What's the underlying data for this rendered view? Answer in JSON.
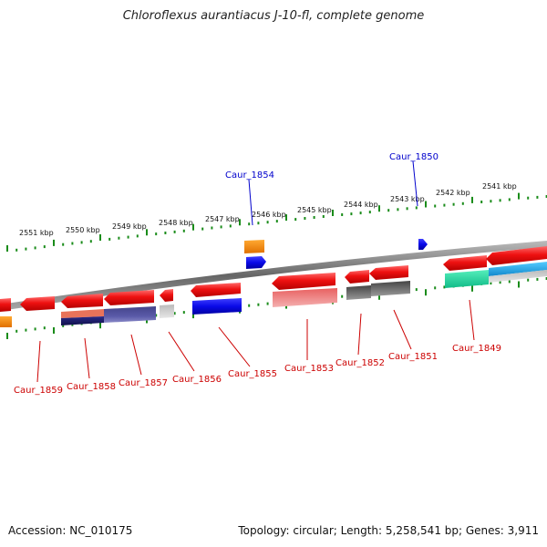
{
  "title": "Chloroflexus aurantiacus J-10-fl, complete genome",
  "footer": {
    "accession": "Accession: NC_010175",
    "summary": "Topology: circular; Length: 5,258,541 bp; Genes: 3,911"
  },
  "scale_labels": [
    "2551 kbp",
    "2550 kbp",
    "2549 kbp",
    "2548 kbp",
    "2547 kbp",
    "2546 kbp",
    "2545 kbp",
    "2544 kbp",
    "2543 kbp",
    "2542 kbp",
    "2541 kbp"
  ],
  "top_labels": [
    "Caur_1854",
    "Caur_1850"
  ],
  "bottom_labels": [
    "Caur_1859",
    "Caur_1858",
    "Caur_1857",
    "Caur_1856",
    "Caur_1855",
    "Caur_1853",
    "Caur_1852",
    "Caur_1851",
    "Caur_1849"
  ],
  "colors": {
    "gene_red": "#ee1111",
    "gene_blue": "#0a0ae8",
    "gene_orange": "#ff8800",
    "gene_teal": "#22ddaa",
    "gene_cyan": "#22aaee",
    "gene_grey": "#555555",
    "tick_green": "#1a8c1a",
    "label_blue": "#0000cc",
    "label_red": "#cc0000"
  }
}
